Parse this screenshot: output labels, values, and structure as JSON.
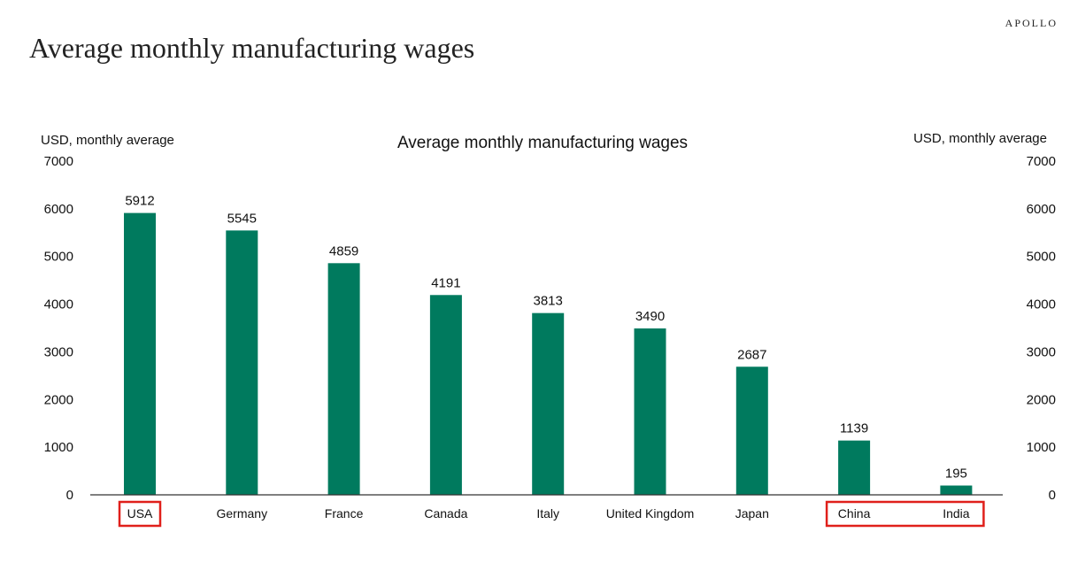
{
  "header": {
    "title": "Average monthly manufacturing wages",
    "brand": "APOLLO"
  },
  "chart_data": {
    "type": "bar",
    "title": "Average monthly manufacturing wages",
    "ylabel_left": "USD, monthly average",
    "ylabel_right": "USD, monthly average",
    "xlabel": "",
    "ylim": [
      0,
      7000
    ],
    "yticks": [
      0,
      1000,
      2000,
      3000,
      4000,
      5000,
      6000,
      7000
    ],
    "categories": [
      "USA",
      "Germany",
      "France",
      "Canada",
      "Italy",
      "United Kingdom",
      "Japan",
      "China",
      "India"
    ],
    "values": [
      5912,
      5545,
      4859,
      4191,
      3813,
      3490,
      2687,
      1139,
      195
    ],
    "data_labels": true,
    "grid": false,
    "bar_color": "#007A5E",
    "highlight_color": "#E0201B",
    "highlighted_categories": [
      [
        "USA"
      ],
      [
        "China",
        "India"
      ]
    ]
  }
}
